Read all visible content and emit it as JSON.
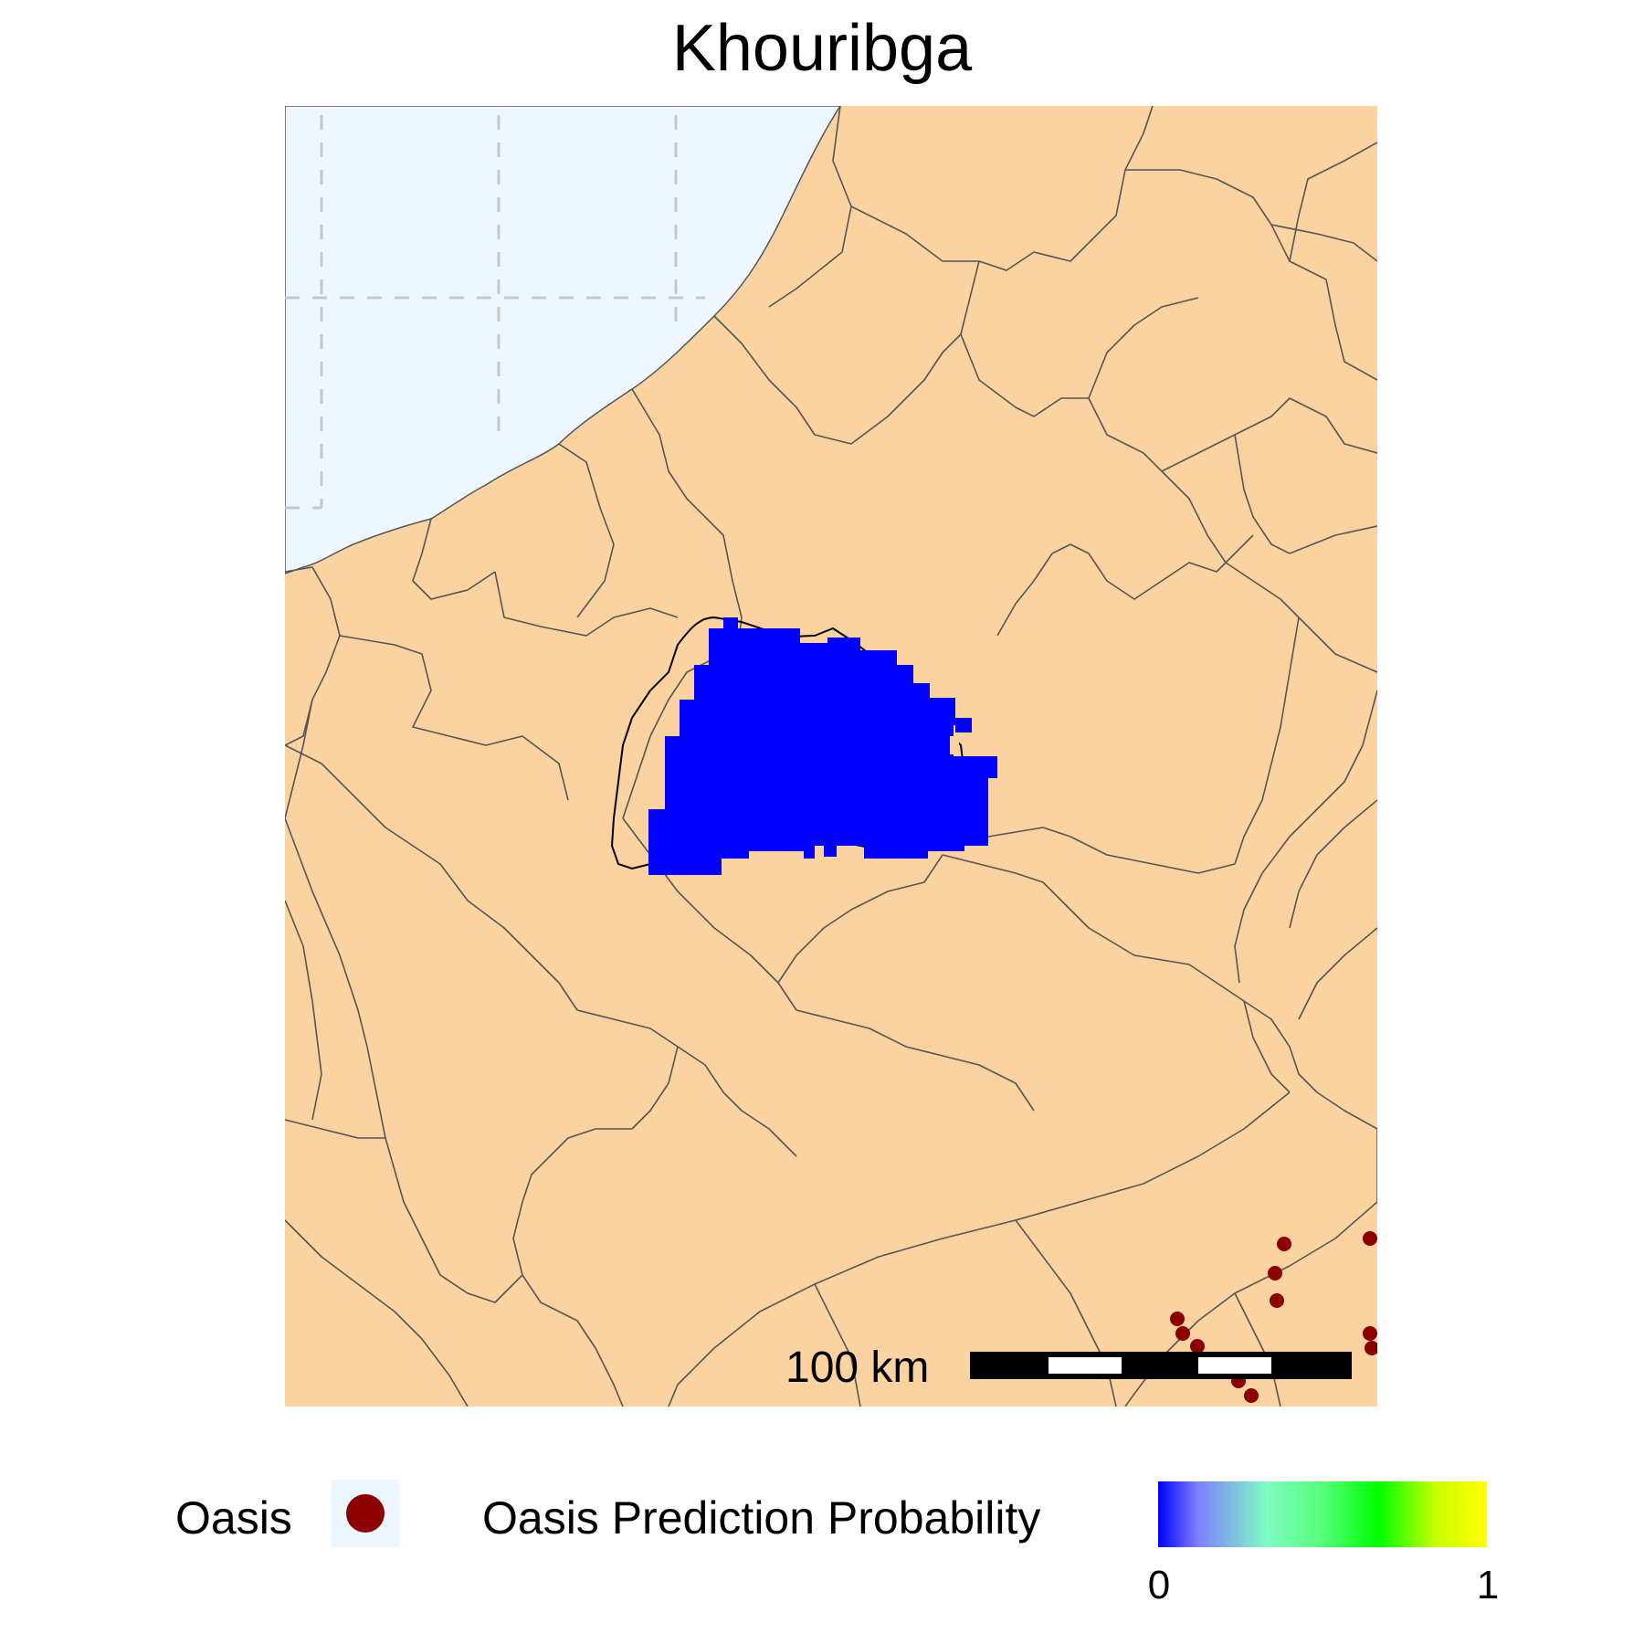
{
  "title": "Khouribga",
  "scale_bar": {
    "label": "100 km"
  },
  "legend": {
    "oasis_label": "Oasis",
    "probability_label": "Oasis Prediction Probability",
    "probability_min": "0",
    "probability_max": "1"
  },
  "colors": {
    "land": "#fbd3a0",
    "sea": "#eef6ff",
    "boundary": "#555555",
    "prediction_fill": "#0000ff",
    "oasis_point": "#8b0000",
    "graticule": "#c8c8c8",
    "colorbar_stops": [
      "#0000ff",
      "#7f7fff",
      "#7ffbc0",
      "#54ff7a",
      "#00ff00",
      "#ccff00",
      "#ffff00"
    ]
  },
  "oasis_points": {
    "count": 13
  },
  "prediction_range": {
    "min": 0,
    "max": 1
  }
}
